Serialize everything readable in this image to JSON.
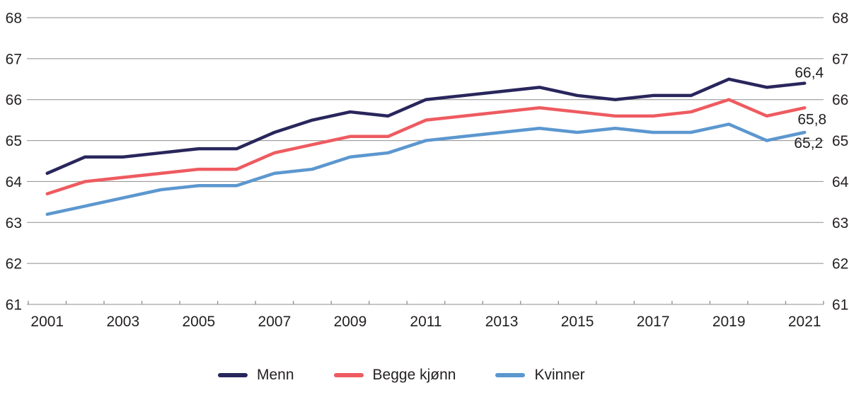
{
  "chart_data": {
    "type": "line",
    "title": "",
    "xlabel": "",
    "ylabel": "",
    "x": [
      2001,
      2002,
      2003,
      2004,
      2005,
      2006,
      2007,
      2008,
      2009,
      2010,
      2011,
      2012,
      2013,
      2014,
      2015,
      2016,
      2017,
      2018,
      2019,
      2020,
      2021
    ],
    "x_tick_labels": [
      "2001",
      "2003",
      "2005",
      "2007",
      "2009",
      "2011",
      "2013",
      "2015",
      "2017",
      "2019",
      "2021"
    ],
    "x_tick_label_step": 2,
    "ylim": [
      61,
      68
    ],
    "y_ticks": [
      61,
      62,
      63,
      64,
      65,
      66,
      67,
      68
    ],
    "y_tick_labels": [
      "61",
      "62",
      "63",
      "64",
      "65",
      "66",
      "67",
      "68"
    ],
    "y_axis_sides": [
      "left",
      "right"
    ],
    "grid": "horizontal",
    "legend_position": "bottom",
    "series": [
      {
        "name": "Menn",
        "color": "#29265c",
        "values": [
          64.2,
          64.6,
          64.6,
          64.7,
          64.8,
          64.8,
          65.2,
          65.5,
          65.7,
          65.6,
          66.0,
          66.1,
          66.2,
          66.3,
          66.1,
          66.0,
          66.1,
          66.1,
          66.5,
          66.3,
          66.4
        ],
        "end_label": "66,4"
      },
      {
        "name": "Begge kjønn",
        "color": "#ee5b60",
        "values": [
          63.7,
          64.0,
          64.1,
          64.2,
          64.3,
          64.3,
          64.7,
          64.9,
          65.1,
          65.1,
          65.5,
          65.6,
          65.7,
          65.8,
          65.7,
          65.6,
          65.6,
          65.7,
          66.0,
          65.6,
          65.8
        ],
        "end_label": "65,8"
      },
      {
        "name": "Kvinner",
        "color": "#5c97cf",
        "values": [
          63.2,
          63.4,
          63.6,
          63.8,
          63.9,
          63.9,
          64.2,
          64.3,
          64.6,
          64.7,
          65.0,
          65.1,
          65.2,
          65.3,
          65.2,
          65.3,
          65.2,
          65.2,
          65.4,
          65.0,
          65.2
        ],
        "end_label": "65,2"
      }
    ]
  },
  "colors": {
    "background": "#ffffff",
    "gridline": "#8e8e8e",
    "axis_text": "#231f20"
  }
}
